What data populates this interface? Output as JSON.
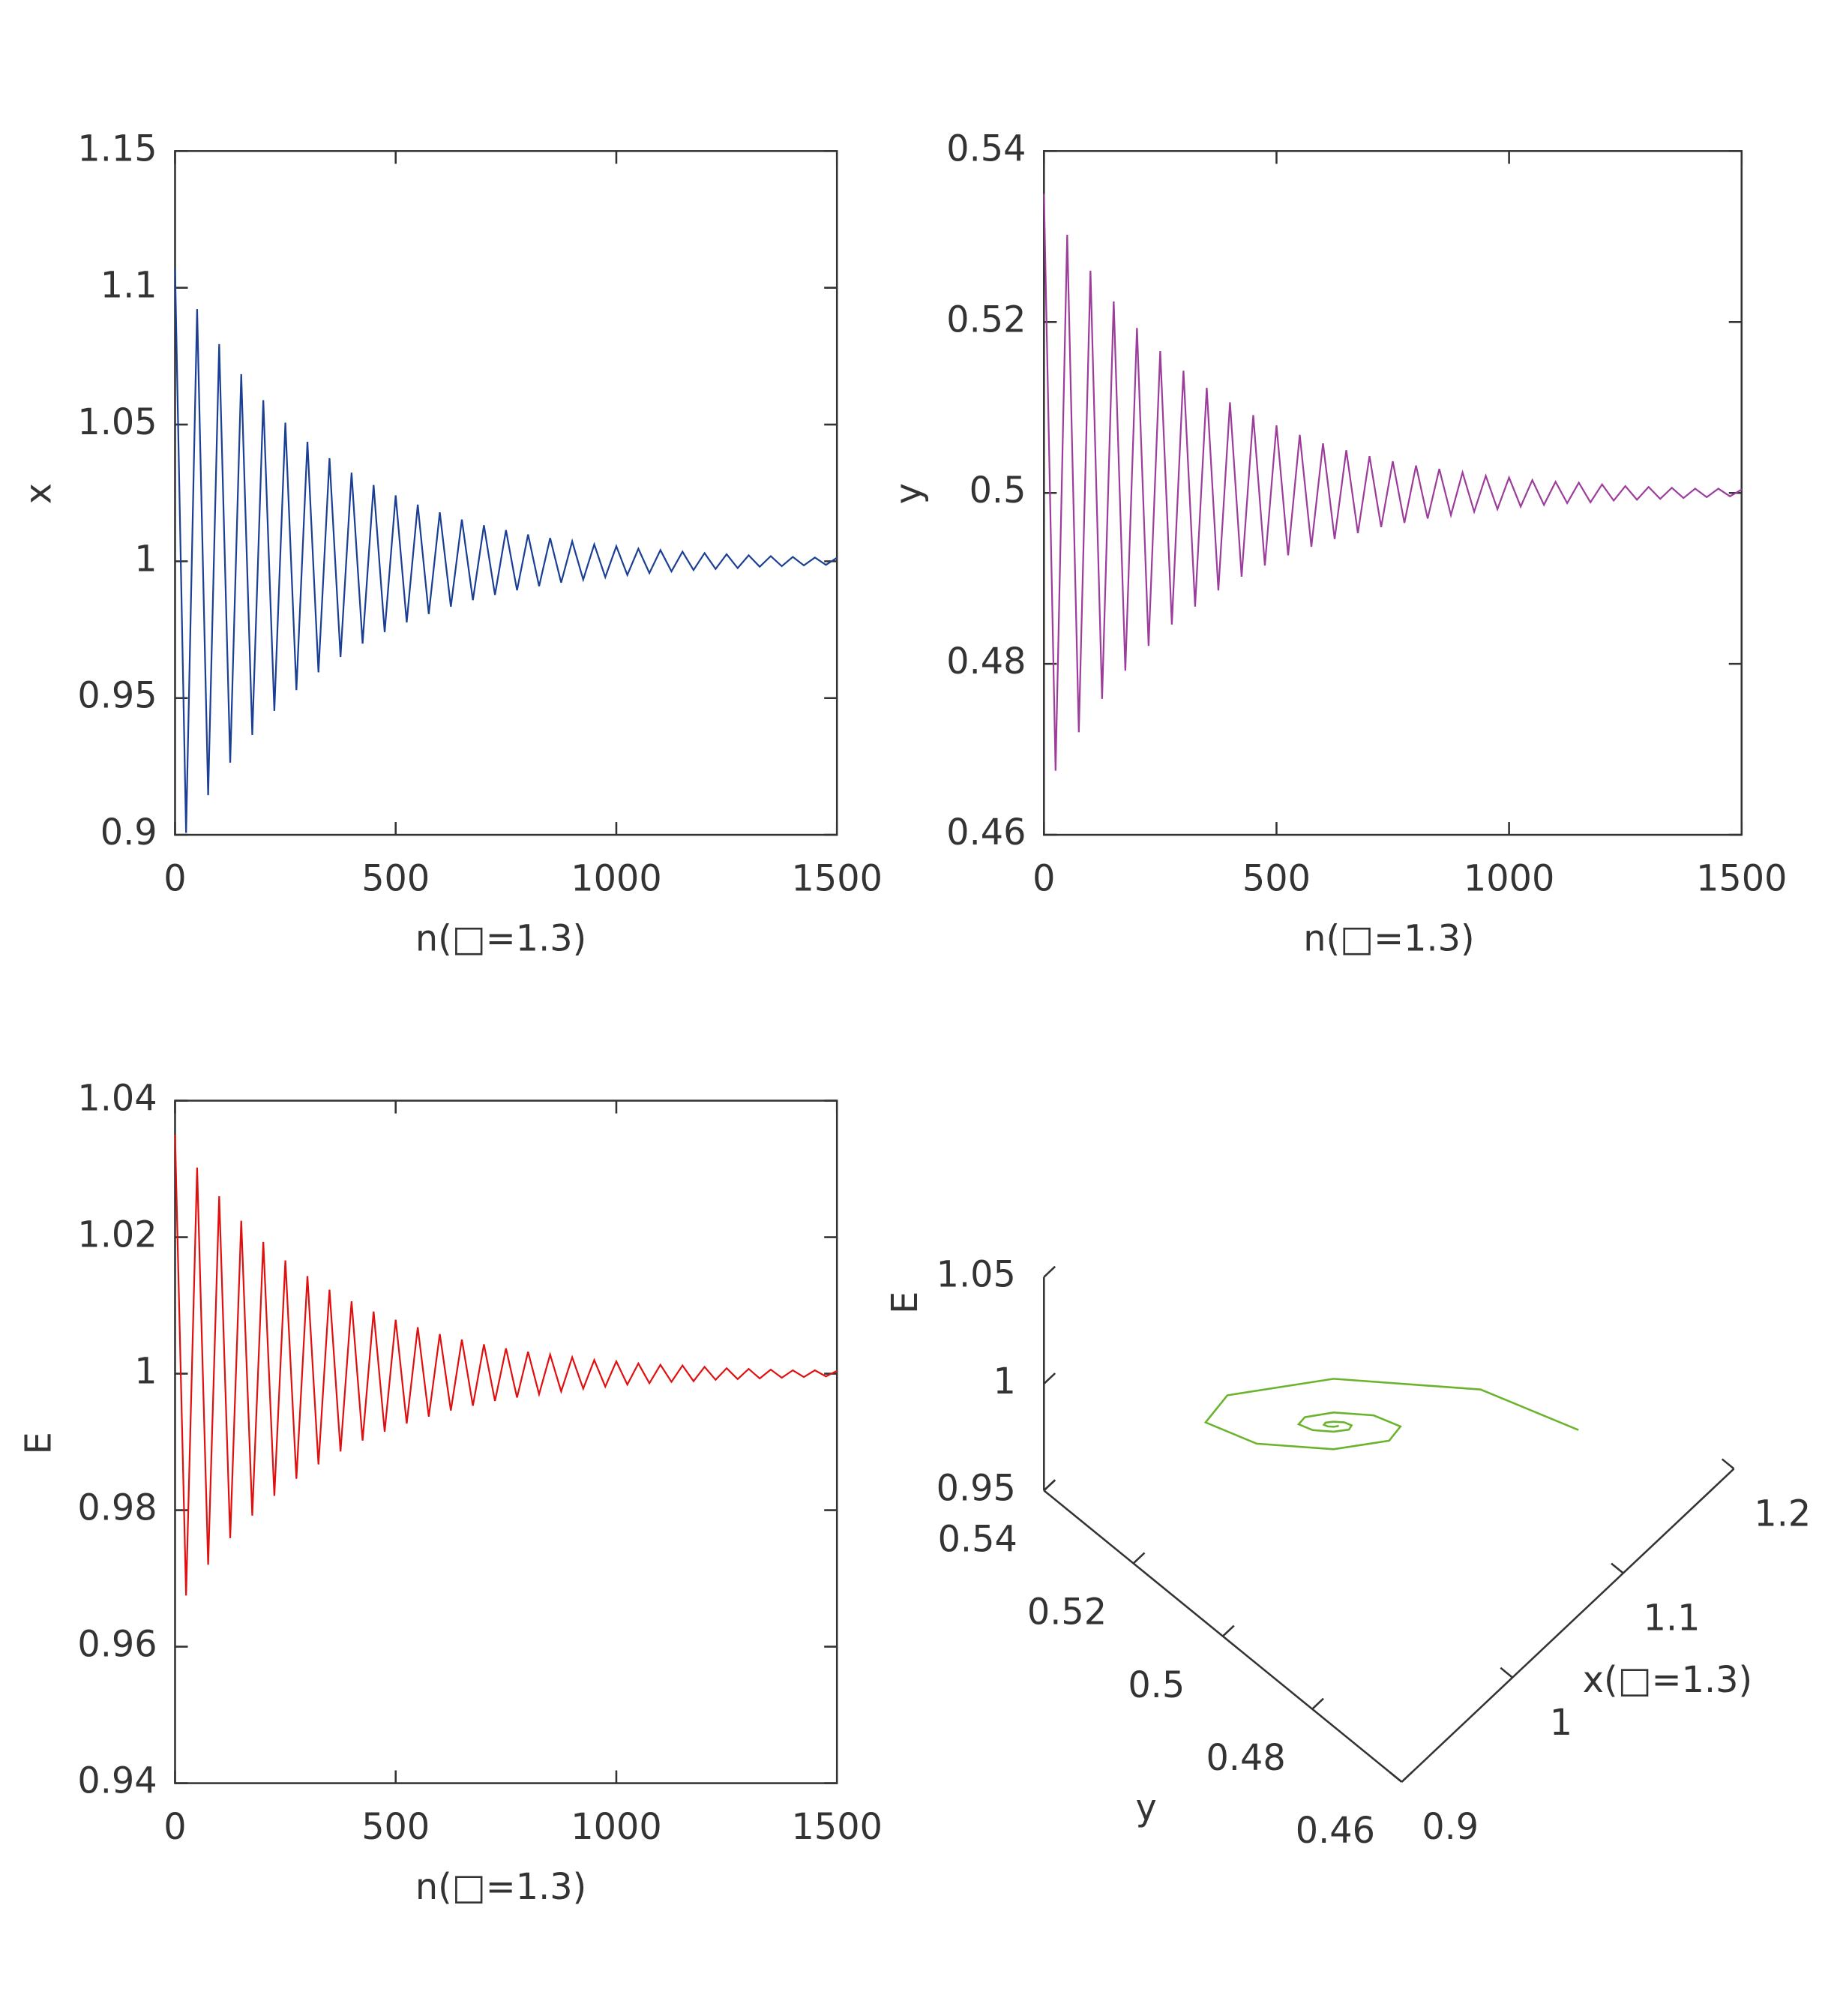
{
  "chart_data": [
    {
      "type": "line",
      "xlabel": "n(□=1.3)",
      "ylabel": "x",
      "x": [
        0,
        25,
        50,
        75,
        100,
        125,
        150,
        175,
        200,
        225,
        250,
        275,
        300,
        325,
        350,
        375,
        400,
        425,
        450,
        475,
        500,
        525,
        550,
        575,
        600,
        625,
        650,
        675,
        700,
        725,
        750,
        775,
        800,
        825,
        850,
        875,
        900,
        925,
        950,
        975,
        1000,
        1025,
        1050,
        1075,
        1100,
        1125,
        1150,
        1175,
        1200,
        1225,
        1250,
        1275,
        1300,
        1325,
        1350,
        1375,
        1400,
        1425,
        1450,
        1475,
        1500
      ],
      "series": [
        {
          "color": "#1b3f94",
          "values": [
            1.107,
            0.9007,
            1.0922,
            0.9145,
            1.0794,
            0.9264,
            1.0684,
            0.9365,
            1.0589,
            0.9453,
            1.0507,
            0.9529,
            1.0437,
            0.9594,
            1.0377,
            0.965,
            1.0324,
            0.9699,
            1.0279,
            0.9741,
            1.0241,
            0.9777,
            1.0207,
            0.9807,
            1.0179,
            0.9834,
            1.0153,
            0.9858,
            1.0132,
            0.9877,
            1.0114,
            0.9894,
            1.0098,
            0.9909,
            1.0085,
            0.9922,
            1.0073,
            0.9933,
            1.0062,
            0.9942,
            1.0055,
            0.995,
            1.0046,
            0.9957,
            1.0041,
            0.9963,
            1.0035,
            0.9968,
            1.003,
            0.9972,
            1.0026,
            0.9975,
            1.0022,
            0.998,
            1.0019,
            0.9982,
            1.0016,
            0.9985,
            1.0014,
            0.9987,
            1.0013
          ]
        }
      ],
      "xlim": [
        0,
        1500
      ],
      "xticks": [
        0,
        500,
        1000,
        1500
      ],
      "ylim": [
        0.9,
        1.15
      ],
      "yticks": [
        0.9,
        0.95,
        1,
        1.05,
        1.1,
        1.15
      ]
    },
    {
      "type": "line",
      "xlabel": "n(□=1.3)",
      "ylabel": "y",
      "x": [
        0,
        25,
        50,
        75,
        100,
        125,
        150,
        175,
        200,
        225,
        250,
        275,
        300,
        325,
        350,
        375,
        400,
        425,
        450,
        475,
        500,
        525,
        550,
        575,
        600,
        625,
        650,
        675,
        700,
        725,
        750,
        775,
        800,
        825,
        850,
        875,
        900,
        925,
        950,
        975,
        1000,
        1025,
        1050,
        1075,
        1100,
        1125,
        1150,
        1175,
        1200,
        1225,
        1250,
        1275,
        1300,
        1325,
        1350,
        1375,
        1400,
        1425,
        1450,
        1475,
        1500
      ],
      "series": [
        {
          "color": "#9c3d9c",
          "values": [
            0.535,
            0.4675,
            0.5302,
            0.472,
            0.526,
            0.4759,
            0.5224,
            0.4792,
            0.5193,
            0.4821,
            0.5166,
            0.4846,
            0.5143,
            0.4867,
            0.5123,
            0.4886,
            0.5106,
            0.4902,
            0.5091,
            0.4915,
            0.5079,
            0.4927,
            0.5068,
            0.4937,
            0.5058,
            0.4946,
            0.505,
            0.4953,
            0.5043,
            0.496,
            0.5037,
            0.4965,
            0.5032,
            0.497,
            0.5028,
            0.4974,
            0.5024,
            0.4978,
            0.502,
            0.4981,
            0.5018,
            0.4984,
            0.5015,
            0.4986,
            0.5013,
            0.4988,
            0.5012,
            0.4989,
            0.501,
            0.4991,
            0.5008,
            0.4992,
            0.5007,
            0.4993,
            0.5006,
            0.4994,
            0.5005,
            0.4995,
            0.5005,
            0.4996,
            0.5004
          ]
        }
      ],
      "xlim": [
        0,
        1500
      ],
      "xticks": [
        0,
        500,
        1000,
        1500
      ],
      "ylim": [
        0.46,
        0.54
      ],
      "yticks": [
        0.46,
        0.48,
        0.5,
        0.52,
        0.54
      ]
    },
    {
      "type": "line",
      "xlabel": "n(□=1.3)",
      "ylabel": "E",
      "x": [
        0,
        25,
        50,
        75,
        100,
        125,
        150,
        175,
        200,
        225,
        250,
        275,
        300,
        325,
        350,
        375,
        400,
        425,
        450,
        475,
        500,
        525,
        550,
        575,
        600,
        625,
        650,
        675,
        700,
        725,
        750,
        775,
        800,
        825,
        850,
        875,
        900,
        925,
        950,
        975,
        1000,
        1025,
        1050,
        1075,
        1100,
        1125,
        1150,
        1175,
        1200,
        1225,
        1250,
        1275,
        1300,
        1325,
        1350,
        1375,
        1400,
        1425,
        1450,
        1475,
        1500
      ],
      "series": [
        {
          "color": "#e01010",
          "values": [
            1.035,
            0.9675,
            1.0302,
            0.972,
            1.026,
            0.9759,
            1.0224,
            0.9792,
            1.0193,
            0.9821,
            1.0166,
            0.9846,
            1.0143,
            0.9867,
            1.0123,
            0.9886,
            1.0106,
            0.9902,
            1.0091,
            0.9915,
            1.0079,
            0.9927,
            1.0068,
            0.9937,
            1.0058,
            0.9946,
            1.005,
            0.9953,
            1.0043,
            0.996,
            1.0037,
            0.9965,
            1.0032,
            0.997,
            1.0028,
            0.9974,
            1.0024,
            0.9978,
            1.002,
            0.9981,
            1.0018,
            0.9984,
            1.0015,
            0.9986,
            1.0013,
            0.9988,
            1.0012,
            0.9989,
            1.001,
            0.9991,
            1.0008,
            0.9992,
            1.0007,
            0.9993,
            1.0006,
            0.9994,
            1.0005,
            0.9995,
            1.0005,
            0.9996,
            1.0004
          ]
        }
      ],
      "xlim": [
        0,
        1500
      ],
      "xticks": [
        0,
        500,
        1000,
        1500
      ],
      "ylim": [
        0.94,
        1.04
      ],
      "yticks": [
        0.94,
        0.96,
        0.98,
        1,
        1.02,
        1.04
      ]
    },
    {
      "type": "line3d",
      "xlabel": "x(□=1.3)",
      "ylabel": "y",
      "zlabel": "E",
      "color": "#6ab42d",
      "x": [
        1.1,
        1.0601,
        1,
        0.9566,
        0.9478,
        0.9686,
        1,
        1.0227,
        1.0273,
        1.0164,
        1,
        0.9882,
        0.9858,
        0.9915,
        1,
        1.0062,
        1.0074,
        1.0045,
        1,
        0.9968,
        0.9961,
        0.9977,
        1,
        1.0017,
        1.002
      ],
      "y": [
        0.47,
        0.482,
        0.5,
        0.513,
        0.5157,
        0.5094,
        0.5,
        0.4932,
        0.4918,
        0.4951,
        0.5,
        0.5035,
        0.5043,
        0.5026,
        0.5,
        0.4981,
        0.4978,
        0.4987,
        0.5,
        0.501,
        0.5012,
        0.5007,
        0.5,
        0.4995,
        0.4994
      ],
      "z": [
        1,
        1.018,
        1.0217,
        1.013,
        1,
        0.9906,
        0.9887,
        0.9932,
        1,
        1.0049,
        1.0059,
        1.0035,
        1,
        0.9974,
        0.9969,
        0.9981,
        1,
        1.0013,
        1.0016,
        1.001,
        1,
        0.9993,
        0.9992,
        0.9995,
        1
      ],
      "xlim": [
        0.9,
        1.2
      ],
      "xticks": [
        0.9,
        1,
        1.1,
        1.2
      ],
      "ylim": [
        0.46,
        0.54
      ],
      "yticks": [
        0.46,
        0.48,
        0.5,
        0.52,
        0.54
      ],
      "zlim": [
        0.95,
        1.05
      ],
      "zticks": [
        0.95,
        1,
        1.05
      ]
    }
  ]
}
